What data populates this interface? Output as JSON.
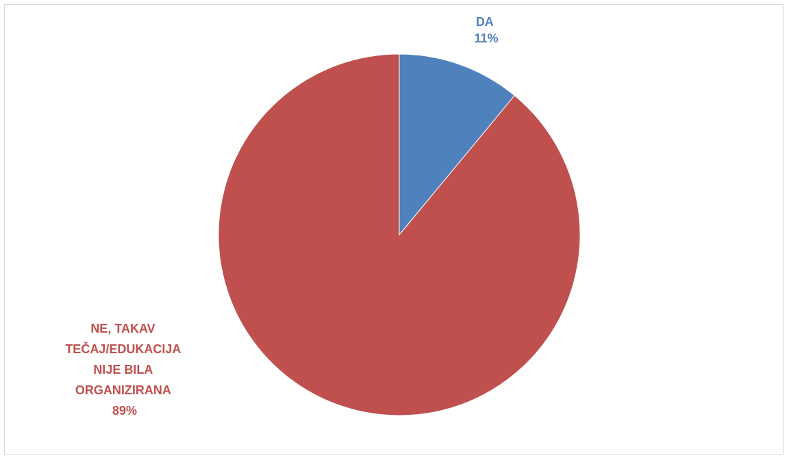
{
  "chart_data": {
    "type": "pie",
    "title": "",
    "start_angle_deg": 0,
    "direction": "clockwise",
    "slices": [
      {
        "label": "DA",
        "value": 11,
        "pct_label": "11%",
        "color": "#4f81bd"
      },
      {
        "label_lines": [
          "NE, TAKAV",
          "TEČAJ/EDUKACIJA",
          "NIJE BILA",
          "ORGANIZIRANA"
        ],
        "value": 89,
        "pct_label": "89%",
        "color": "#c0504d"
      }
    ],
    "legend": "none"
  }
}
